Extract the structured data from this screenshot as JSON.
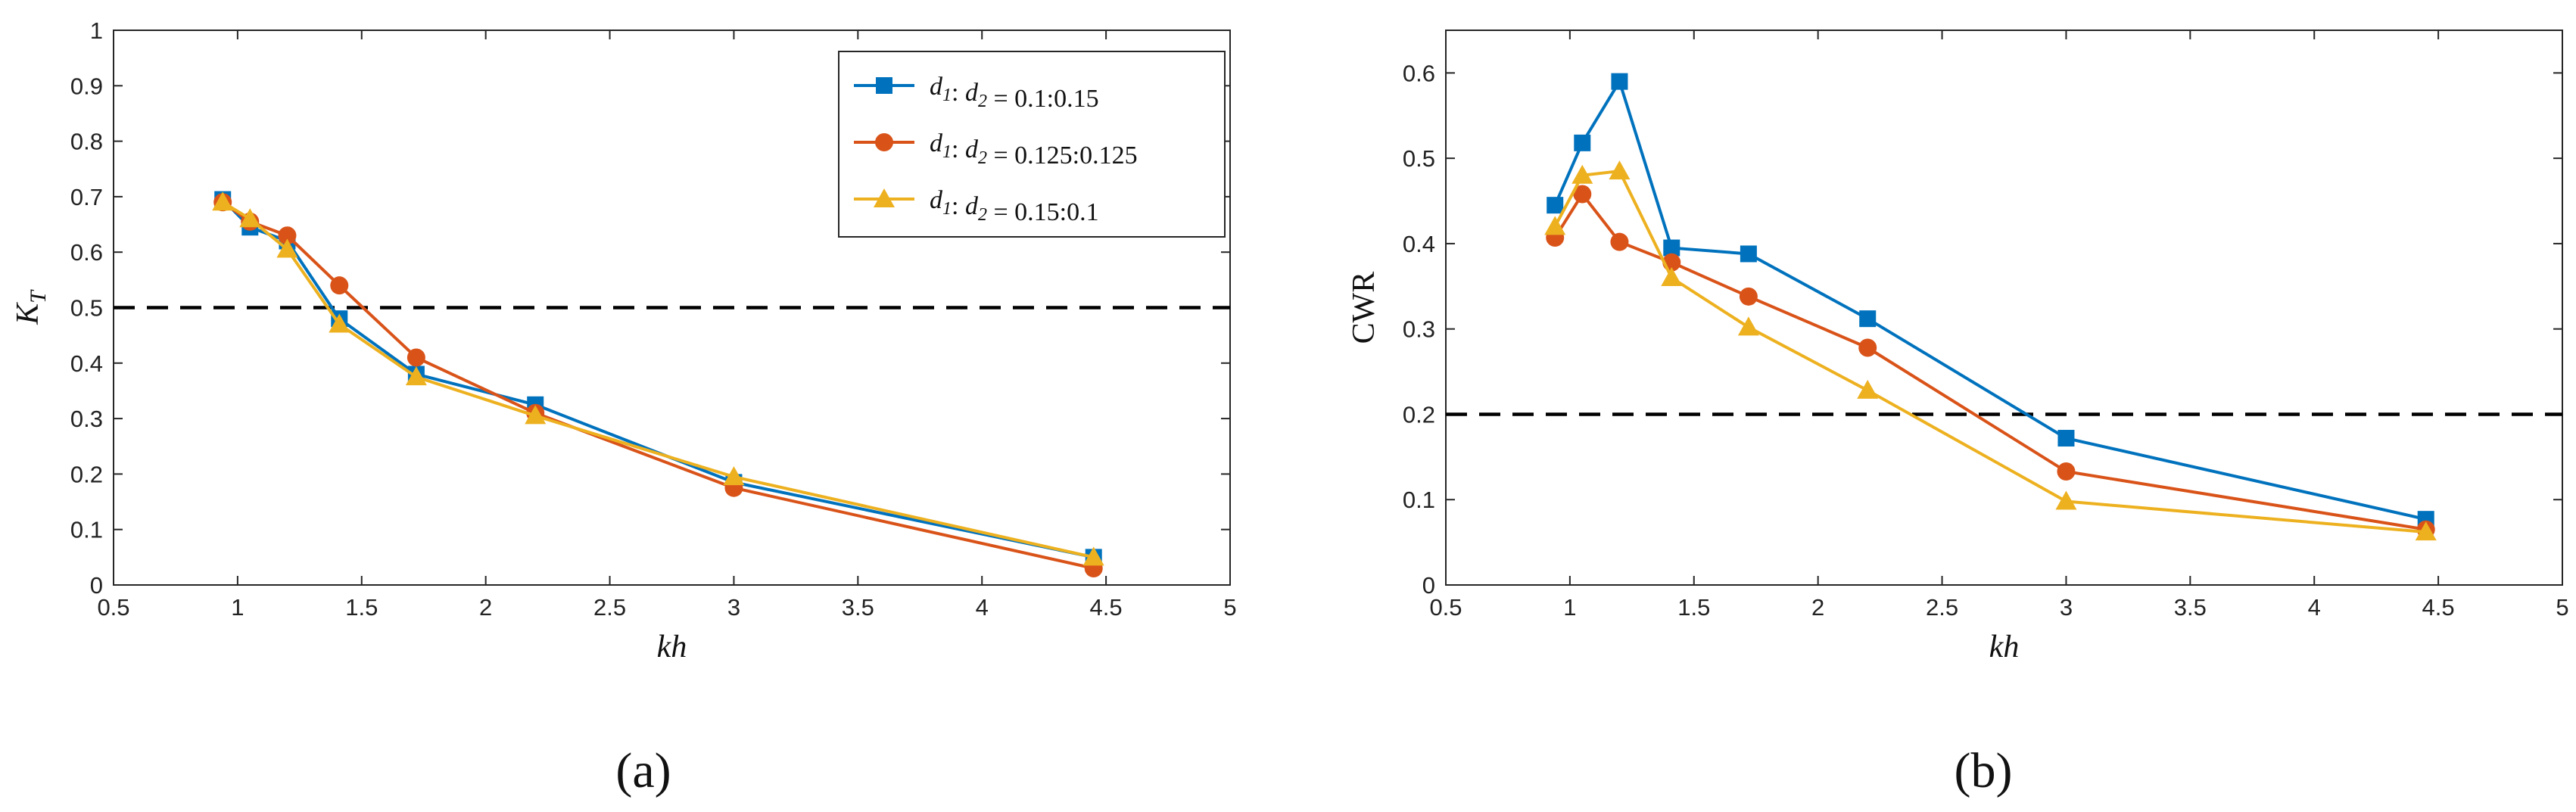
{
  "chart_data": [
    {
      "type": "line",
      "panel_label": "(a)",
      "xlabel": "kh",
      "ylabel": "K",
      "ylabel_sub": "T",
      "xlim": [
        0.5,
        5
      ],
      "ylim": [
        0,
        1
      ],
      "xticks": [
        "0.5",
        "1",
        "1.5",
        "2",
        "2.5",
        "3",
        "3.5",
        "4",
        "4.5",
        "5"
      ],
      "yticks": [
        "0",
        "0.1",
        "0.2",
        "0.3",
        "0.4",
        "0.5",
        "0.6",
        "0.7",
        "0.8",
        "0.9",
        "1"
      ],
      "reference_line": 0.5,
      "legend_position": "top-right",
      "x": [
        0.94,
        1.05,
        1.2,
        1.41,
        1.72,
        2.2,
        3.0,
        4.45
      ],
      "series": [
        {
          "name": "d1: d2 = 0.1:0.15",
          "color": "#0072BD",
          "marker": "square",
          "values": [
            0.695,
            0.645,
            0.62,
            0.48,
            0.38,
            0.325,
            0.185,
            0.05
          ]
        },
        {
          "name": "d1: d2 = 0.125:0.125",
          "color": "#D95319",
          "marker": "circle",
          "values": [
            0.69,
            0.655,
            0.63,
            0.54,
            0.41,
            0.31,
            0.175,
            0.03
          ]
        },
        {
          "name": "d1: d2 = 0.15:0.1",
          "color": "#EDB120",
          "marker": "triangle",
          "values": [
            0.69,
            0.66,
            0.605,
            0.47,
            0.375,
            0.305,
            0.195,
            0.05
          ]
        }
      ]
    },
    {
      "type": "line",
      "panel_label": "(b)",
      "xlabel": "kh",
      "ylabel": "CWR",
      "ylabel_sub": "",
      "xlim": [
        0.5,
        5
      ],
      "ylim": [
        0,
        0.65
      ],
      "xticks": [
        "0.5",
        "1",
        "1.5",
        "2",
        "2.5",
        "3",
        "3.5",
        "4",
        "4.5",
        "5"
      ],
      "yticks": [
        "0",
        "0.1",
        "0.2",
        "0.3",
        "0.4",
        "0.5",
        "0.6"
      ],
      "reference_line": 0.2,
      "x": [
        0.94,
        1.05,
        1.2,
        1.41,
        1.72,
        2.2,
        3.0,
        4.45
      ],
      "series": [
        {
          "name": "d1: d2 = 0.1:0.15",
          "color": "#0072BD",
          "marker": "square",
          "values": [
            0.445,
            0.518,
            0.59,
            0.395,
            0.388,
            0.312,
            0.172,
            0.077
          ]
        },
        {
          "name": "d1: d2 = 0.125:0.125",
          "color": "#D95319",
          "marker": "circle",
          "values": [
            0.407,
            0.458,
            0.402,
            0.378,
            0.338,
            0.278,
            0.133,
            0.065
          ]
        },
        {
          "name": "d1: d2 = 0.15:0.1",
          "color": "#EDB120",
          "marker": "triangle",
          "values": [
            0.42,
            0.48,
            0.485,
            0.36,
            0.302,
            0.228,
            0.098,
            0.062
          ]
        }
      ]
    }
  ],
  "legend": [
    {
      "d1": "d",
      "sub1": "1",
      "colon": ": ",
      "d2": "d",
      "sub2": "2",
      "value": " = 0.1:0.15"
    },
    {
      "d1": "d",
      "sub1": "1",
      "colon": ": ",
      "d2": "d",
      "sub2": "2",
      "value": " = 0.125:0.125"
    },
    {
      "d1": "d",
      "sub1": "1",
      "colon": ": ",
      "d2": "d",
      "sub2": "2",
      "value": " = 0.15:0.1"
    }
  ]
}
